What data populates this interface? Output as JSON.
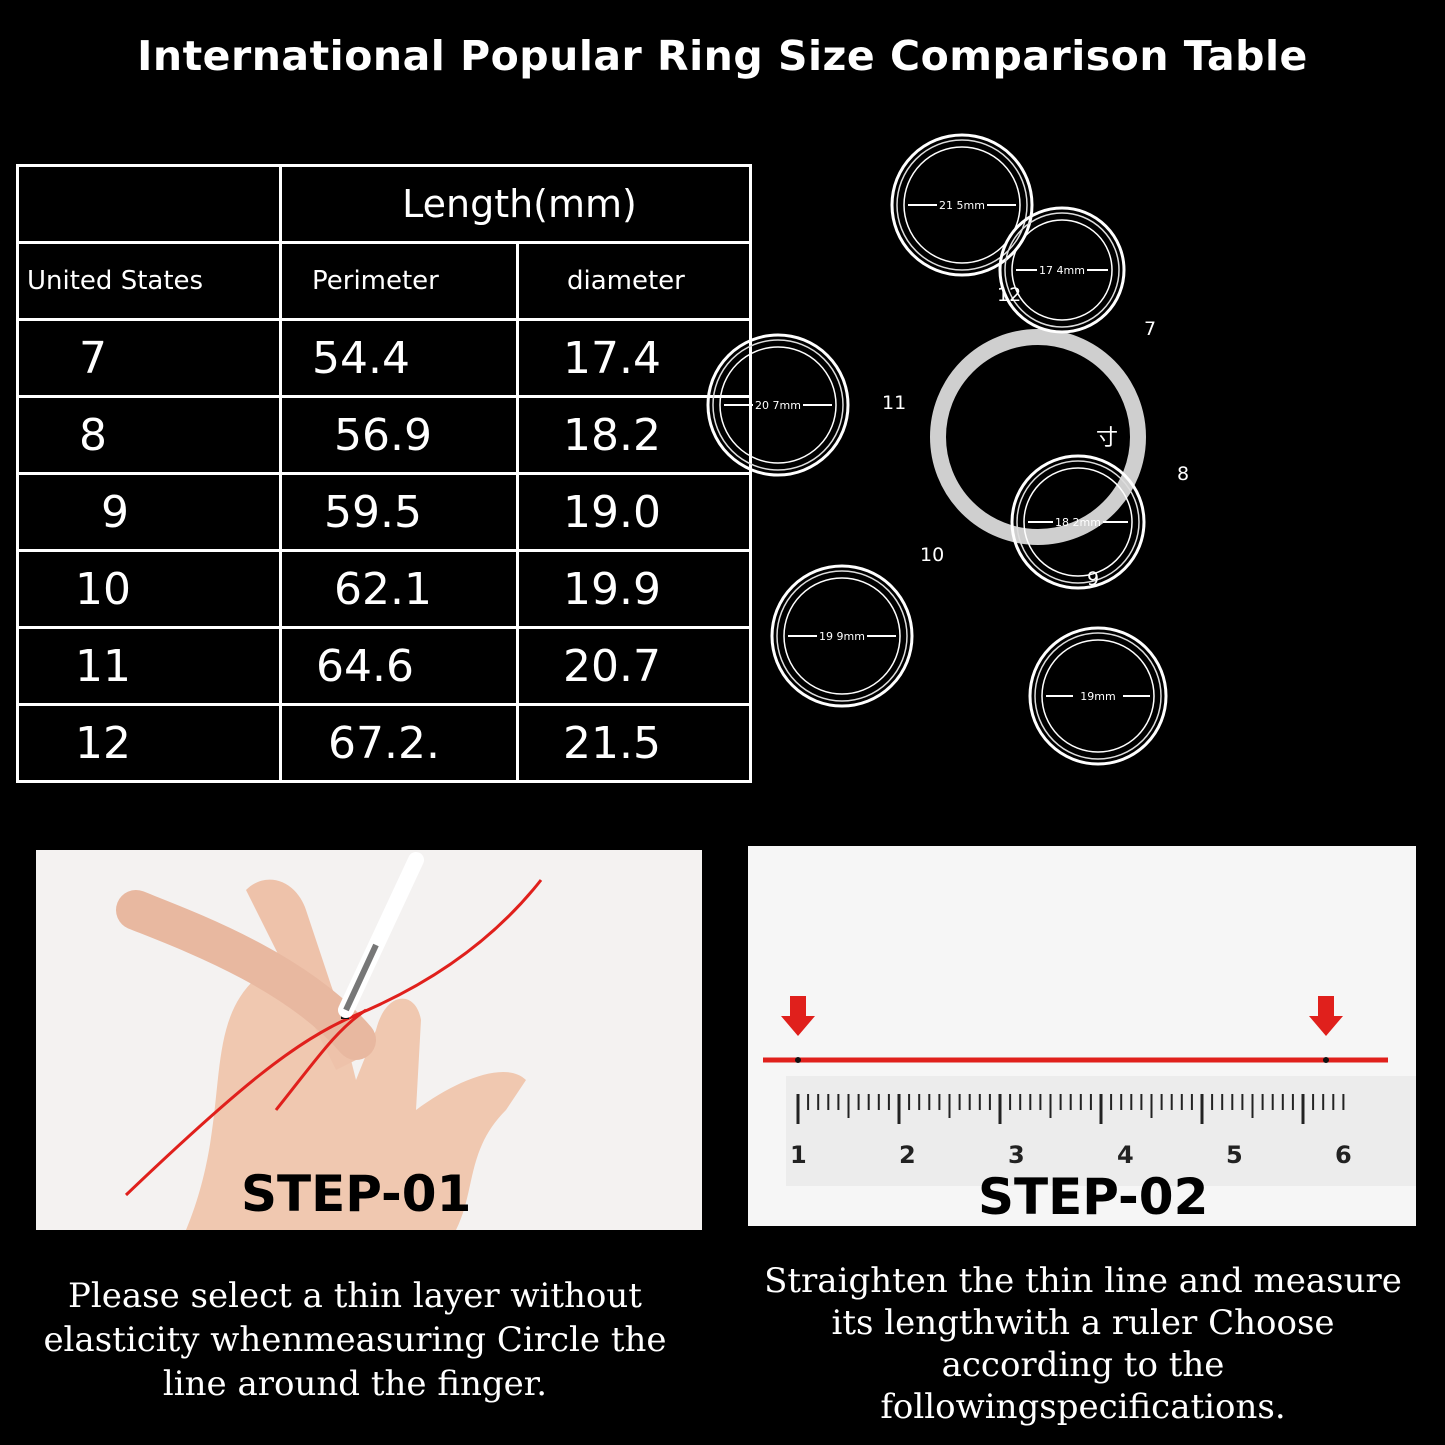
{
  "title": "International Popular Ring Size Comparison Table",
  "table": {
    "group_header": "Length(mm)",
    "columns": [
      "United States",
      "Perimeter",
      "diameter"
    ],
    "rows": [
      [
        "7",
        "54.4",
        "17.4"
      ],
      [
        "8",
        "56.9",
        "18.2"
      ],
      [
        "9",
        "59.5",
        "19.0"
      ],
      [
        "10",
        "62.1",
        "19.9"
      ],
      [
        "11",
        "64.6",
        "20.7"
      ],
      [
        "12",
        "67.2.",
        "21.5"
      ]
    ]
  },
  "rings": {
    "center_glyph": "寸",
    "items": [
      {
        "size": "12",
        "diameter_label": "21 5mm"
      },
      {
        "size": "7",
        "diameter_label": "17 4mm"
      },
      {
        "size": "11",
        "diameter_label": "20 7mm"
      },
      {
        "size": "8",
        "diameter_label": "18 2mm"
      },
      {
        "size": "10",
        "diameter_label": "19 9mm"
      },
      {
        "size": "9",
        "diameter_label": "19mm"
      }
    ]
  },
  "steps": [
    {
      "label": "STEP-01",
      "description": "Please select a thin layer without elasticity whenmeasuring Circle the line around the finger."
    },
    {
      "label": "STEP-02",
      "description": "Straighten the thin line and measure its lengthwith a ruler Choose according to the followingspecifications.",
      "ruler_numbers": [
        "1",
        "2",
        "3",
        "4",
        "5",
        "6"
      ]
    }
  ],
  "colors": {
    "background": "#000000",
    "thread": "#e0201c",
    "ring_center": "#cfcfcf"
  }
}
